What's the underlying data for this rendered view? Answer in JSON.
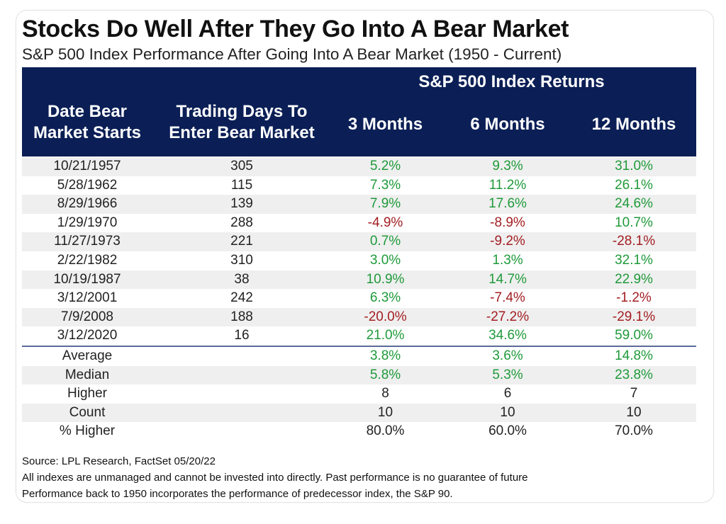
{
  "title": "Stocks Do Well After They Go Into A Bear Market",
  "subtitle": "S&P 500 Index Performance After Going Into A Bear Market (1950 - Current)",
  "chart_data": {
    "type": "table",
    "group_header": "S&P 500 Index Returns",
    "columns": [
      "Date Bear Market Starts",
      "Trading Days To Enter Bear Market",
      "3 Months",
      "6 Months",
      "12 Months"
    ],
    "rows": [
      [
        "10/21/1957",
        "305",
        "5.2%",
        "9.3%",
        "31.0%"
      ],
      [
        "5/28/1962",
        "115",
        "7.3%",
        "11.2%",
        "26.1%"
      ],
      [
        "8/29/1966",
        "139",
        "7.9%",
        "17.6%",
        "24.6%"
      ],
      [
        "1/29/1970",
        "288",
        "-4.9%",
        "-8.9%",
        "10.7%"
      ],
      [
        "11/27/1973",
        "221",
        "0.7%",
        "-9.2%",
        "-28.1%"
      ],
      [
        "2/22/1982",
        "310",
        "3.0%",
        "1.3%",
        "32.1%"
      ],
      [
        "10/19/1987",
        "38",
        "10.9%",
        "14.7%",
        "22.9%"
      ],
      [
        "3/12/2001",
        "242",
        "6.3%",
        "-7.4%",
        "-1.2%"
      ],
      [
        "7/9/2008",
        "188",
        "-20.0%",
        "-27.2%",
        "-29.1%"
      ],
      [
        "3/12/2020",
        "16",
        "21.0%",
        "34.6%",
        "59.0%"
      ]
    ],
    "summary": [
      [
        "Average",
        "",
        "3.8%",
        "3.6%",
        "14.8%"
      ],
      [
        "Median",
        "",
        "5.8%",
        "5.3%",
        "23.8%"
      ],
      [
        "Higher",
        "",
        "8",
        "6",
        "7"
      ],
      [
        "Count",
        "",
        "10",
        "10",
        "10"
      ],
      [
        "% Higher",
        "",
        "80.0%",
        "60.0%",
        "70.0%"
      ]
    ]
  },
  "header": {
    "col0_line1": "Date Bear",
    "col0_line2": "Market Starts",
    "col1_line1": "Trading Days To",
    "col1_line2": "Enter Bear Market"
  },
  "footnotes": {
    "source": "Source: LPL Research, FactSet 05/20/22",
    "note1": "All indexes are unmanaged and cannot be invested into directly. Past performance is no guarantee of future",
    "note2": "Performance back to 1950 incorporates the performance of predecessor index, the S&P 90."
  },
  "colors": {
    "header_bg": "#0b1f56",
    "positive": "#1f9a3a",
    "negative": "#a31e22",
    "shade": "#efefef"
  }
}
